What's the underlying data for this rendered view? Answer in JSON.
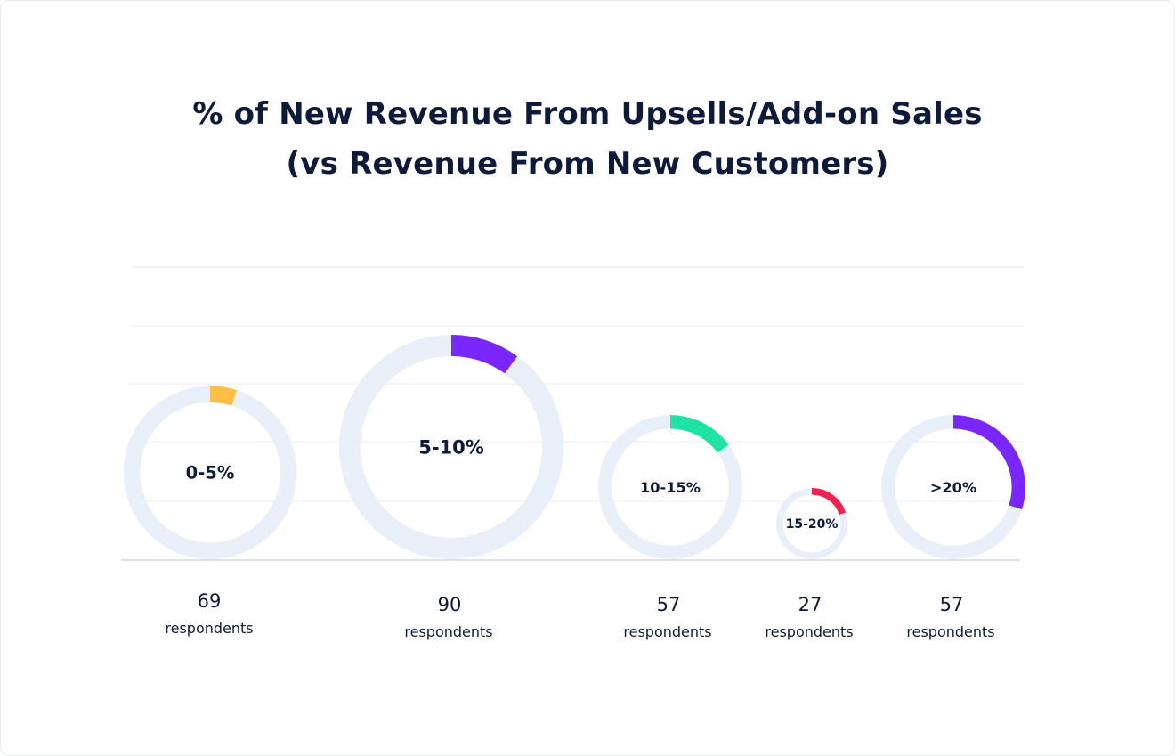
{
  "chart_data": {
    "type": "donut",
    "title": "% of New Revenue From Upsells/Add-on Sales",
    "subtitle": "(vs Revenue From New Customers)",
    "unit_label": "respondents",
    "grid": true,
    "categories": [
      "0-5%",
      "5-10%",
      "10-15%",
      "15-20%",
      ">20%"
    ],
    "respondents": [
      69,
      90,
      57,
      27,
      57
    ],
    "arc_fraction": [
      0.05,
      0.1,
      0.15,
      0.2,
      0.3
    ],
    "colors": [
      "#ffbf47",
      "#7a26ff",
      "#1ee3a5",
      "#f5204f",
      "#7a26ff"
    ],
    "track_color": "#e8eff9"
  }
}
